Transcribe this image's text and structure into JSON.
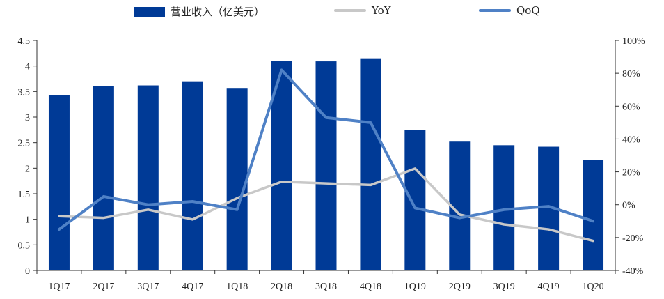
{
  "chart_data": {
    "type": "bar",
    "categories": [
      "1Q17",
      "2Q17",
      "3Q17",
      "4Q17",
      "1Q18",
      "2Q18",
      "3Q18",
      "4Q18",
      "1Q19",
      "2Q19",
      "3Q19",
      "4Q19",
      "1Q20"
    ],
    "series": [
      {
        "name": "营业收入（亿美元）",
        "type": "bar",
        "axis": "left",
        "color": "#003A96",
        "values": [
          3.43,
          3.6,
          3.62,
          3.7,
          3.57,
          4.1,
          4.09,
          4.15,
          2.75,
          2.52,
          2.45,
          2.42,
          2.16
        ]
      },
      {
        "name": "YoY",
        "type": "line",
        "axis": "right",
        "color": "#C8C8C8",
        "values": [
          -7,
          -8,
          -3,
          -9,
          4,
          14,
          13,
          12,
          22,
          -6,
          -12,
          -15,
          -22
        ]
      },
      {
        "name": "QoQ",
        "type": "line",
        "axis": "right",
        "color": "#4F81C6",
        "values": [
          -15,
          5,
          0,
          2,
          -3,
          82,
          53,
          50,
          -2,
          -8,
          -3,
          -1,
          -10
        ]
      }
    ],
    "y_left": {
      "ylim": [
        0,
        4.5
      ],
      "ticks": [
        "0",
        "0.5",
        "1",
        "1.5",
        "2",
        "2.5",
        "3",
        "3.5",
        "4",
        "4.5"
      ]
    },
    "y_right": {
      "ylim": [
        -40,
        100
      ],
      "ticks": [
        "-40%",
        "-20%",
        "0%",
        "20%",
        "40%",
        "60%",
        "80%",
        "100%"
      ]
    },
    "legend_position": "top",
    "grid": false
  }
}
